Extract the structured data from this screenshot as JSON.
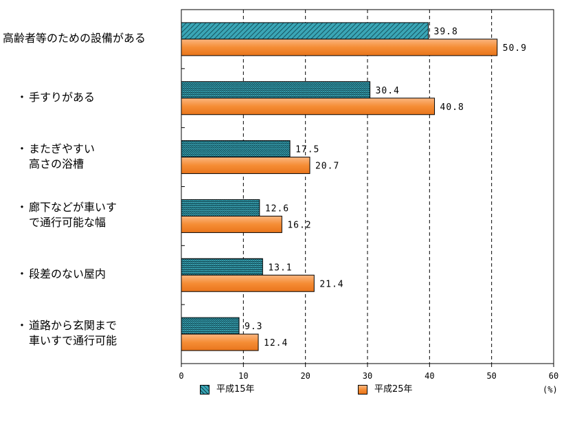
{
  "chart_data": {
    "type": "bar",
    "orientation": "horizontal",
    "title": "",
    "xlabel": "",
    "ylabel": "",
    "unit": "(%)",
    "xlim": [
      0,
      60
    ],
    "xticks": [
      "0",
      "10",
      "20",
      "30",
      "40",
      "50",
      "60"
    ],
    "grid": "vertical dashed",
    "legend_position": "bottom",
    "categories": [
      {
        "lines": [
          "高齢者等のための設備がある"
        ],
        "bullet": ""
      },
      {
        "lines": [
          "手すりがある"
        ],
        "bullet": "・"
      },
      {
        "lines": [
          "またぎやすい",
          "高さの浴槽"
        ],
        "bullet": "・"
      },
      {
        "lines": [
          "廊下などが車いす",
          "で通行可能な幅"
        ],
        "bullet": "・"
      },
      {
        "lines": [
          "段差のない屋内"
        ],
        "bullet": "・"
      },
      {
        "lines": [
          "道路から玄関まで",
          "車いすで通行可能"
        ],
        "bullet": "・"
      }
    ],
    "series": [
      {
        "name": "平成15年",
        "color": "#3aa6b6",
        "values": [
          39.8,
          30.4,
          17.5,
          12.6,
          13.1,
          9.3
        ],
        "labels": [
          "39.8",
          "30.4",
          "17.5",
          "12.6",
          "13.1",
          "9.3"
        ]
      },
      {
        "name": "平成25年",
        "color": "#f7923d",
        "values": [
          50.9,
          40.8,
          20.7,
          16.2,
          21.4,
          12.4
        ],
        "labels": [
          "50.9",
          "40.8",
          "20.7",
          "16.2",
          "21.4",
          "12.4"
        ]
      }
    ]
  }
}
